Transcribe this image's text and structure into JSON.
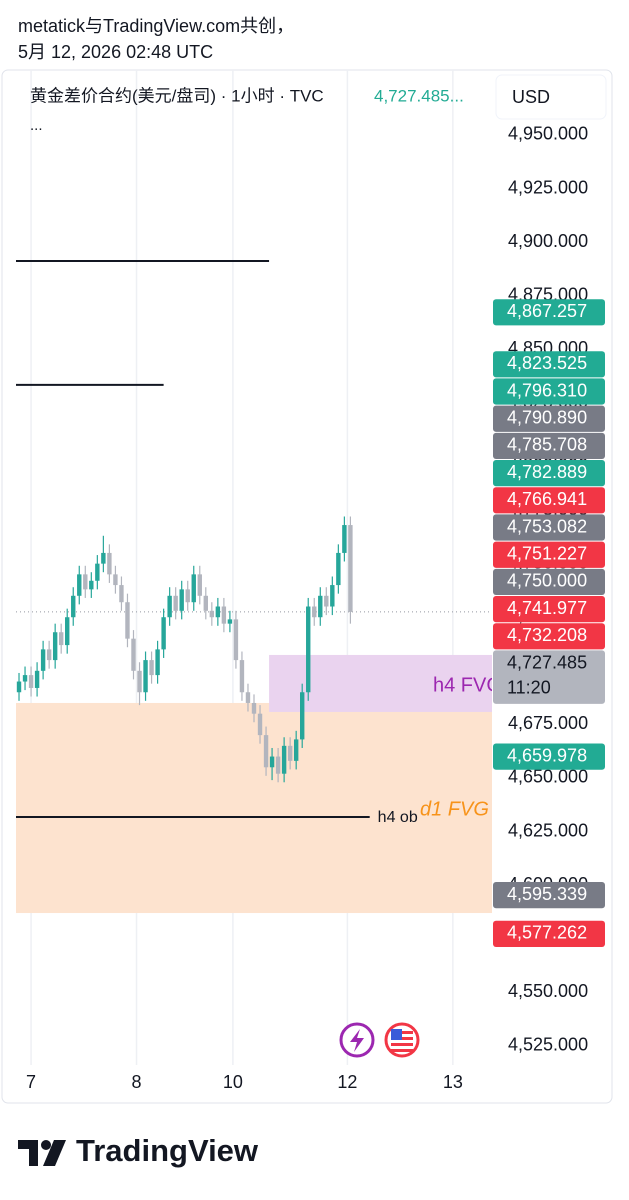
{
  "header": {
    "line1": "metatick与TradingView.com共创，",
    "line2": "5月 12, 2026 02:48 UTC"
  },
  "chart_data": {
    "type": "candlestick",
    "title": "黄金差价合约(美元/盘司) · 1小时 · TVC",
    "last_price": "4,727.485...",
    "title_more": "...",
    "currency": "USD",
    "up_color": "#26a69a",
    "down_color": "#b2b5be",
    "open": [
      4690,
      4695,
      4698,
      4692,
      4700,
      4710,
      4705,
      4718,
      4712,
      4725,
      4735,
      4745,
      4738,
      4742,
      4750,
      4755,
      4745,
      4740,
      4732,
      4715,
      4700,
      4690,
      4705,
      4698,
      4710,
      4725,
      4735,
      4728,
      4738,
      4732,
      4745,
      4735,
      4728,
      4725,
      4730,
      4722,
      4724,
      4705,
      4690,
      4685,
      4680,
      4670,
      4655,
      4660,
      4652,
      4665,
      4658,
      4668,
      4690,
      4730,
      4725,
      4735,
      4730,
      4740,
      4755,
      4768
    ],
    "high": [
      4699,
      4702,
      4702,
      4704,
      4714,
      4714,
      4722,
      4722,
      4729,
      4739,
      4749,
      4749,
      4746,
      4754,
      4763,
      4759,
      4749,
      4744,
      4736,
      4719,
      4704,
      4709,
      4709,
      4714,
      4729,
      4739,
      4739,
      4742,
      4742,
      4749,
      4749,
      4739,
      4732,
      4734,
      4734,
      4728,
      4728,
      4709,
      4694,
      4689,
      4684,
      4674,
      4664,
      4664,
      4669,
      4669,
      4672,
      4694,
      4734,
      4734,
      4739,
      4739,
      4744,
      4759,
      4772,
      4772
    ],
    "low": [
      4686,
      4691,
      4688,
      4688,
      4696,
      4701,
      4701,
      4708,
      4708,
      4721,
      4731,
      4734,
      4734,
      4738,
      4746,
      4741,
      4736,
      4728,
      4711,
      4696,
      4684,
      4686,
      4694,
      4694,
      4706,
      4721,
      4724,
      4724,
      4728,
      4728,
      4731,
      4724,
      4721,
      4721,
      4718,
      4718,
      4701,
      4686,
      4681,
      4676,
      4666,
      4651,
      4649,
      4648,
      4648,
      4654,
      4654,
      4664,
      4686,
      4721,
      4721,
      4726,
      4726,
      4736,
      4751,
      4722
    ],
    "close": [
      4695,
      4698,
      4692,
      4700,
      4710,
      4705,
      4718,
      4712,
      4725,
      4735,
      4745,
      4738,
      4742,
      4750,
      4755,
      4745,
      4740,
      4732,
      4715,
      4700,
      4690,
      4705,
      4698,
      4710,
      4725,
      4735,
      4728,
      4738,
      4732,
      4745,
      4735,
      4728,
      4725,
      4730,
      4722,
      4724,
      4705,
      4690,
      4685,
      4680,
      4670,
      4655,
      4660,
      4652,
      4665,
      4658,
      4668,
      4690,
      4730,
      4725,
      4735,
      4730,
      4740,
      4755,
      4768,
      4727.485
    ],
    "xlim": [
      -0.5,
      78.5
    ],
    "xticks": [
      {
        "value": 2,
        "label": "7"
      },
      {
        "value": 19.5,
        "label": "8"
      },
      {
        "value": 35.5,
        "label": "10"
      },
      {
        "value": 54.5,
        "label": "12"
      },
      {
        "value": 72,
        "label": "13"
      }
    ],
    "grid": true,
    "ylim": [
      4516.1,
      4980.3
    ],
    "yticks": [
      {
        "value": 4525,
        "label": "4,525.000"
      },
      {
        "value": 4550,
        "label": "4,550.000"
      },
      {
        "value": 4575,
        "label": "4,575.000"
      },
      {
        "value": 4600,
        "label": "4,600.000"
      },
      {
        "value": 4625,
        "label": "4,625.000"
      },
      {
        "value": 4650,
        "label": "4,650.000"
      },
      {
        "value": 4675,
        "label": "4,675.000"
      },
      {
        "value": 4700,
        "label": "4,700.000"
      },
      {
        "value": 4725,
        "label": "4,725.000"
      },
      {
        "value": 4750,
        "label": "4,750.000"
      },
      {
        "value": 4775,
        "label": "4,775.000"
      },
      {
        "value": 4800,
        "label": "4,800.000"
      },
      {
        "value": 4825,
        "label": "4,825.000"
      },
      {
        "value": 4850,
        "label": "4,850.000"
      },
      {
        "value": 4875,
        "label": "4,875.000"
      },
      {
        "value": 4900,
        "label": "4,900.000"
      },
      {
        "value": 4925,
        "label": "4,925.000"
      },
      {
        "value": 4950,
        "label": "4,950.000"
      }
    ],
    "lines": [
      {
        "value": 4891.2,
        "end": 41.5
      },
      {
        "value": 4833.4,
        "end": 24
      },
      {
        "value": 4631.8,
        "end": 58.2,
        "label": "h4 ob"
      }
    ],
    "zones": [
      {
        "label": "d1 FVG",
        "top": 4685.0,
        "bottom": 4587.0,
        "color": "#fde3cf",
        "text_color": "#f7931a"
      },
      {
        "label": "h4 FVG",
        "top": 4707.4,
        "bottom": 4680.8,
        "start": 41.5,
        "color": "#ead3ef",
        "text_color": "#9c27b0"
      }
    ],
    "price_tags": [
      {
        "value": 4867.257,
        "label": "4,867.257",
        "color": "#22ab94"
      },
      {
        "value": 4823.525,
        "label": "4,823.525",
        "color": "#22ab94"
      },
      {
        "value": 4796.31,
        "label": "4,796.310",
        "color": "#22ab94"
      },
      {
        "value": 4790.89,
        "label": "4,790.890",
        "color": "#787b86"
      },
      {
        "value": 4785.708,
        "label": "4,785.708",
        "color": "#787b86"
      },
      {
        "value": 4782.889,
        "label": "4,782.889",
        "color": "#22ab94"
      },
      {
        "value": 4766.941,
        "label": "4,766.941",
        "color": "#f23645"
      },
      {
        "value": 4753.082,
        "label": "4,753.082",
        "color": "#787b86"
      },
      {
        "value": 4751.227,
        "label": "4,751.227",
        "color": "#f23645"
      },
      {
        "value": 4750,
        "label": "4,750.000",
        "color": "#787b86"
      },
      {
        "value": 4741.977,
        "label": "4,741.977",
        "color": "#f23645"
      },
      {
        "value": 4732.208,
        "label": "4,732.208",
        "color": "#f23645"
      },
      {
        "value": 4727.485,
        "label": "4,727.485",
        "color": "#b2b5be",
        "countdown": "11:20"
      },
      {
        "value": 4659.978,
        "label": "4,659.978",
        "color": "#22ab94"
      },
      {
        "value": 4595.339,
        "label": "4,595.339",
        "color": "#787b86"
      },
      {
        "value": 4577.262,
        "label": "4,577.262",
        "color": "#f23645"
      }
    ]
  },
  "footer": {
    "brand": "TradingView"
  }
}
